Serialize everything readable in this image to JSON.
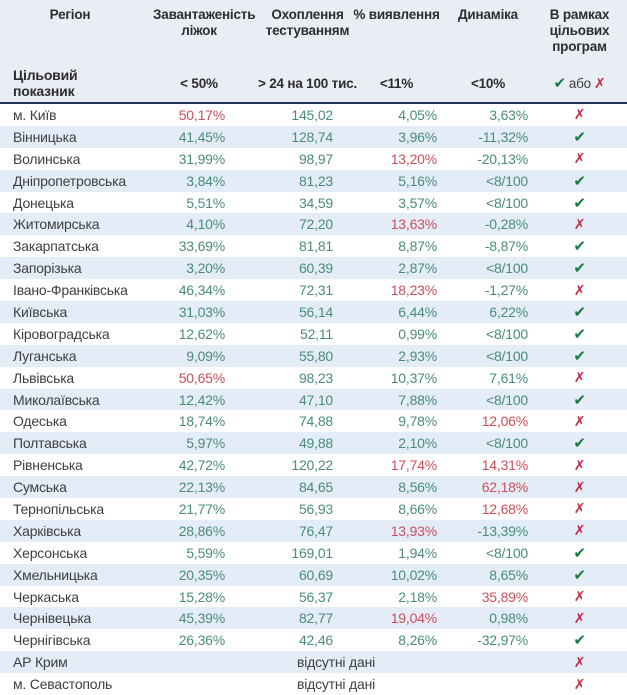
{
  "colors": {
    "good": "#4a8c7b",
    "bad": "#c9505a",
    "check": "#1b7a41",
    "cross": "#c12a43",
    "stripe": "#e3ecf7",
    "header_bg": "#e9edf4",
    "divider": "#20355a"
  },
  "icons": {
    "check": "✔",
    "cross": "✗"
  },
  "chart_data": {
    "type": "table",
    "columns": [
      "Регіон",
      "Завантаженість ліжок",
      "Охоплення тестуванням",
      "% виявлення",
      "Динаміка",
      "В рамках цільових програм"
    ],
    "target_row": {
      "label": "Цільовий показник",
      "bed_load": "< 50%",
      "testing": "> 24 на 100 тис.",
      "detection": "<11%",
      "dynamics": "<10%",
      "or_word": "або"
    },
    "no_data_text": "відсутні дані",
    "rows": [
      {
        "region": "м. Київ",
        "values": [
          "50,17%",
          "145,02",
          "4,05%",
          "3,63%"
        ],
        "status": [
          "bad",
          "good",
          "good",
          "good"
        ],
        "program": "cross"
      },
      {
        "region": "Вінницька",
        "values": [
          "41,45%",
          "128,74",
          "3,96%",
          "-11,32%"
        ],
        "status": [
          "good",
          "good",
          "good",
          "good"
        ],
        "program": "check"
      },
      {
        "region": "Волинська",
        "values": [
          "31,99%",
          "98,97",
          "13,20%",
          "-20,13%"
        ],
        "status": [
          "good",
          "good",
          "bad",
          "good"
        ],
        "program": "cross"
      },
      {
        "region": "Дніпропетровська",
        "values": [
          "3,84%",
          "81,23",
          "5,16%",
          "<8/100"
        ],
        "status": [
          "good",
          "good",
          "good",
          "good"
        ],
        "program": "check"
      },
      {
        "region": "Донецька",
        "values": [
          "5,51%",
          "34,59",
          "3,57%",
          "<8/100"
        ],
        "status": [
          "good",
          "good",
          "good",
          "good"
        ],
        "program": "check"
      },
      {
        "region": "Житомирська",
        "values": [
          "4,10%",
          "72,20",
          "13,63%",
          "-0,28%"
        ],
        "status": [
          "good",
          "good",
          "bad",
          "good"
        ],
        "program": "cross"
      },
      {
        "region": "Закарпатська",
        "values": [
          "33,69%",
          "81,81",
          "8,87%",
          "-8,87%"
        ],
        "status": [
          "good",
          "good",
          "good",
          "good"
        ],
        "program": "check"
      },
      {
        "region": "Запорізька",
        "values": [
          "3,20%",
          "60,39",
          "2,87%",
          "<8/100"
        ],
        "status": [
          "good",
          "good",
          "good",
          "good"
        ],
        "program": "check"
      },
      {
        "region": "Івано-Франківська",
        "values": [
          "46,34%",
          "72,31",
          "18,23%",
          "-1,27%"
        ],
        "status": [
          "good",
          "good",
          "bad",
          "good"
        ],
        "program": "cross"
      },
      {
        "region": "Київська",
        "values": [
          "31,03%",
          "56,14",
          "6,44%",
          "6,22%"
        ],
        "status": [
          "good",
          "good",
          "good",
          "good"
        ],
        "program": "check"
      },
      {
        "region": "Кіровоградська",
        "values": [
          "12,62%",
          "52,11",
          "0,99%",
          "<8/100"
        ],
        "status": [
          "good",
          "good",
          "good",
          "good"
        ],
        "program": "check"
      },
      {
        "region": "Луганська",
        "values": [
          "9,09%",
          "55,80",
          "2,93%",
          "<8/100"
        ],
        "status": [
          "good",
          "good",
          "good",
          "good"
        ],
        "program": "check"
      },
      {
        "region": "Львівська",
        "values": [
          "50,65%",
          "98,23",
          "10,37%",
          "7,61%"
        ],
        "status": [
          "bad",
          "good",
          "good",
          "good"
        ],
        "program": "cross"
      },
      {
        "region": "Миколаївська",
        "values": [
          "12,42%",
          "47,10",
          "7,88%",
          "<8/100"
        ],
        "status": [
          "good",
          "good",
          "good",
          "good"
        ],
        "program": "check"
      },
      {
        "region": "Одеська",
        "values": [
          "18,74%",
          "74,88",
          "9,78%",
          "12,06%"
        ],
        "status": [
          "good",
          "good",
          "good",
          "bad"
        ],
        "program": "cross"
      },
      {
        "region": "Полтавська",
        "values": [
          "5,97%",
          "49,88",
          "2,10%",
          "<8/100"
        ],
        "status": [
          "good",
          "good",
          "good",
          "good"
        ],
        "program": "check"
      },
      {
        "region": "Рівненська",
        "values": [
          "42,72%",
          "120,22",
          "17,74%",
          "14,31%"
        ],
        "status": [
          "good",
          "good",
          "bad",
          "bad"
        ],
        "program": "cross"
      },
      {
        "region": "Сумська",
        "values": [
          "22,13%",
          "84,65",
          "8,56%",
          "62,18%"
        ],
        "status": [
          "good",
          "good",
          "good",
          "bad"
        ],
        "program": "cross"
      },
      {
        "region": "Тернопільська",
        "values": [
          "21,77%",
          "56,93",
          "8,66%",
          "12,68%"
        ],
        "status": [
          "good",
          "good",
          "good",
          "bad"
        ],
        "program": "cross"
      },
      {
        "region": "Харківська",
        "values": [
          "28,86%",
          "76,47",
          "13,93%",
          "-13,39%"
        ],
        "status": [
          "good",
          "good",
          "bad",
          "good"
        ],
        "program": "cross"
      },
      {
        "region": "Херсонська",
        "values": [
          "5,59%",
          "169,01",
          "1,94%",
          "<8/100"
        ],
        "status": [
          "good",
          "good",
          "good",
          "good"
        ],
        "program": "check"
      },
      {
        "region": "Хмельницька",
        "values": [
          "20,35%",
          "60,69",
          "10,02%",
          "8,65%"
        ],
        "status": [
          "good",
          "good",
          "good",
          "good"
        ],
        "program": "check"
      },
      {
        "region": "Черкаська",
        "values": [
          "15,28%",
          "56,37",
          "2,18%",
          "35,89%"
        ],
        "status": [
          "good",
          "good",
          "good",
          "bad"
        ],
        "program": "cross"
      },
      {
        "region": "Чернівецька",
        "values": [
          "45,39%",
          "82,77",
          "19,04%",
          "0,98%"
        ],
        "status": [
          "good",
          "good",
          "bad",
          "good"
        ],
        "program": "cross"
      },
      {
        "region": "Чернігівська",
        "values": [
          "26,36%",
          "42,46",
          "8,26%",
          "-32,97%"
        ],
        "status": [
          "good",
          "good",
          "good",
          "good"
        ],
        "program": "check"
      },
      {
        "region": "АР Крим",
        "no_data": true,
        "program": "cross"
      },
      {
        "region": "м. Севастополь",
        "no_data": true,
        "program": "cross"
      }
    ]
  }
}
